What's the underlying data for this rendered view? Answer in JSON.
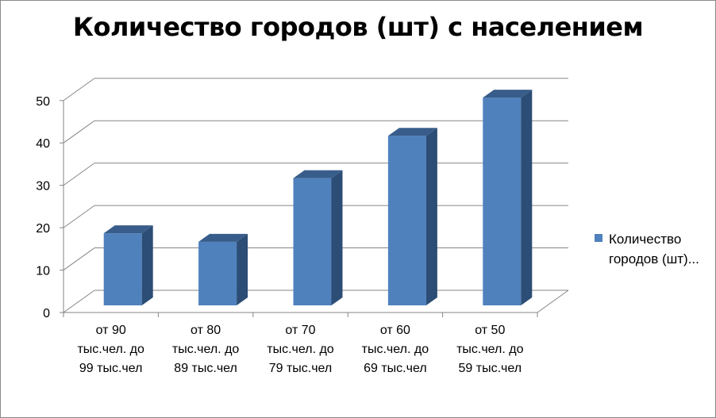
{
  "chart_data": {
    "type": "bar",
    "title": "Количество городов (шт) с населением",
    "categories": [
      "от 90 тыс.чел. до 99 тыс.чел",
      "от 80 тыс.чел. до 89 тыс.чел",
      "от 70 тыс.чел. до 79 тыс.чел",
      "от 60 тыс.чел. до 69 тыс.чел",
      "от 50 тыс.чел. до 59 тыс.чел"
    ],
    "category_lines": [
      [
        "от 90",
        "тыс.чел. до",
        "99 тыс.чел"
      ],
      [
        "от 80",
        "тыс.чел. до",
        "89 тыс.чел"
      ],
      [
        "от 70",
        "тыс.чел. до",
        "79 тыс.чел"
      ],
      [
        "от 60",
        "тыс.чел. до",
        "69 тыс.чел"
      ],
      [
        "от 50",
        "тыс.чел. до",
        "59 тыс.чел"
      ]
    ],
    "series": [
      {
        "name": "Количество городов (шт)...",
        "values": [
          17,
          15,
          30,
          40,
          49
        ]
      }
    ],
    "legend_lines": [
      "Количество",
      "городов (шт)..."
    ],
    "yticks": [
      "0",
      "10",
      "20",
      "30",
      "40",
      "50"
    ],
    "ylim": [
      0,
      50
    ],
    "grid": true,
    "legend_position": "right",
    "style": "3d-column",
    "colors": {
      "front": "#4f81bd",
      "side": "#2c4d75",
      "top": "#385d8a"
    }
  }
}
